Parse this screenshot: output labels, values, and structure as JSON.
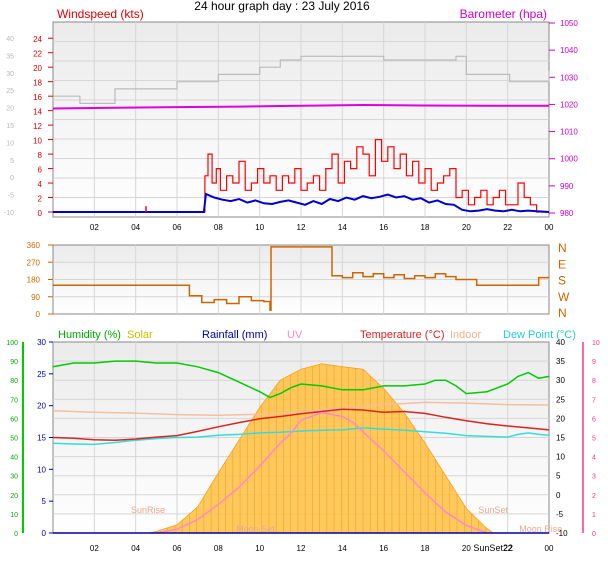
{
  "page": {
    "title": "24 hour graph day : 23 July 2016"
  },
  "colors": {
    "wind_gust": "#ff0000",
    "wind_avg": "#0000cc",
    "barometer": "#dd00dd",
    "baro_hidden": "#bbbbbb",
    "direction": "#cc6600",
    "humidity": "#00cc00",
    "solar": "#ffc040",
    "rain": "#0000aa",
    "uv": "#ff88cc",
    "temperature": "#dd2222",
    "indoor": "#f0c0a0",
    "dewpoint": "#33dddd"
  },
  "chart_data": [
    {
      "type": "line",
      "panel": "wind",
      "left_axis_label": "Windspeed (kts)",
      "right_axis_label": "Barometer (hpa)",
      "x_ticks": [
        "02",
        "04",
        "06",
        "08",
        "10",
        "12",
        "14",
        "16",
        "18",
        "20",
        "22",
        "00"
      ],
      "left_ticks": [
        "0",
        "2",
        "4",
        "6",
        "8",
        "10",
        "12",
        "14",
        "16",
        "18",
        "20",
        "22",
        "24"
      ],
      "left_ylim": [
        0,
        25
      ],
      "faint_ticks": [
        "-10",
        "-5",
        "0",
        "5",
        "10",
        "15",
        "20",
        "25",
        "30",
        "35",
        "40"
      ],
      "faint_ylim": [
        -10,
        40
      ],
      "right_ticks": [
        "980",
        "990",
        "1000",
        "1010",
        "1020",
        "1030",
        "1040",
        "1050"
      ],
      "right_ylim": [
        980,
        1050
      ],
      "x_hours_range": [
        0,
        24
      ],
      "series": [
        {
          "key": "gust",
          "hours": [
            0,
            7.3,
            7.35,
            7.5,
            7.7,
            7.9,
            8.1,
            8.4,
            8.7,
            9.0,
            9.3,
            9.6,
            9.9,
            10.2,
            10.5,
            10.8,
            11.1,
            11.4,
            11.7,
            12.0,
            12.3,
            12.6,
            12.9,
            13.2,
            13.5,
            13.8,
            14.1,
            14.4,
            14.7,
            15.0,
            15.3,
            15.6,
            15.9,
            16.2,
            16.5,
            16.8,
            17.1,
            17.4,
            17.7,
            18.0,
            18.3,
            18.6,
            18.9,
            19.2,
            19.5,
            19.8,
            20.1,
            20.4,
            20.7,
            21.0,
            21.3,
            21.6,
            21.9,
            22.2,
            22.5,
            22.8,
            23.1,
            23.4,
            24
          ],
          "values": [
            0,
            0,
            5,
            8,
            4,
            6,
            3,
            5,
            4,
            7,
            3,
            4,
            6,
            4,
            5,
            3,
            5,
            4,
            6,
            3,
            4,
            5,
            3,
            6,
            8,
            4,
            7,
            6,
            9,
            8,
            5,
            10,
            7,
            9,
            6,
            8,
            5,
            7,
            4,
            6,
            3,
            4,
            5,
            6,
            2,
            3,
            1,
            2,
            3,
            1,
            2,
            3,
            1,
            1,
            4,
            2,
            1,
            0,
            0
          ]
        },
        {
          "key": "avg",
          "hours": [
            0,
            7.3,
            7.4,
            7.8,
            8.2,
            8.6,
            9.0,
            9.4,
            9.8,
            10.2,
            10.6,
            11.0,
            11.4,
            11.8,
            12.2,
            12.6,
            13.0,
            13.4,
            13.8,
            14.2,
            14.6,
            15.0,
            15.4,
            15.8,
            16.2,
            16.6,
            17.0,
            17.4,
            17.8,
            18.2,
            18.6,
            19.0,
            19.4,
            19.8,
            20.2,
            20.6,
            21.0,
            21.4,
            21.8,
            22.2,
            22.6,
            23.0,
            23.4,
            24
          ],
          "values": [
            0,
            0,
            2.5,
            2,
            1.7,
            1.5,
            1.8,
            1.3,
            1.6,
            1.2,
            1.1,
            1.4,
            1.6,
            1.3,
            1.0,
            1.5,
            1.1,
            1.8,
            1.5,
            2.0,
            1.7,
            2.2,
            1.9,
            2.1,
            2.4,
            2.0,
            2.2,
            1.7,
            1.9,
            1.3,
            1.6,
            1.1,
            1.0,
            0.3,
            0.1,
            0.2,
            0.4,
            0.2,
            0.1,
            0.3,
            0.1,
            0.2,
            0.1,
            0
          ]
        },
        {
          "key": "baro",
          "hours": [
            0,
            3,
            6,
            9,
            12,
            15,
            18,
            21,
            24
          ],
          "values": [
            1018.5,
            1018.8,
            1019,
            1019.2,
            1019.5,
            1019.8,
            1019.6,
            1019.5,
            1019.5
          ]
        },
        {
          "key": "hidden",
          "hours": [
            0,
            1.2,
            1.3,
            3,
            6,
            8,
            10,
            11,
            12,
            16,
            19.5,
            20,
            22,
            22.1,
            24
          ],
          "values": [
            16,
            16,
            15,
            17,
            18,
            19,
            20,
            21,
            21.5,
            21,
            21.5,
            19,
            19,
            18,
            19.5
          ]
        }
      ],
      "spikes": [
        {
          "hour": 4.5,
          "value": 0.8
        }
      ]
    },
    {
      "type": "line",
      "panel": "direction",
      "left_ticks": [
        "0",
        "90",
        "180",
        "270",
        "360"
      ],
      "ylim": [
        0,
        360
      ],
      "right_ticks": [
        "N",
        "W",
        "S",
        "E",
        "N"
      ],
      "hours": [
        0,
        5.5,
        6.6,
        7.2,
        7.8,
        8.4,
        9.0,
        9.6,
        10.2,
        10.5,
        10.55,
        13.4,
        13.5,
        14.0,
        14.5,
        15.0,
        15.5,
        16.0,
        16.5,
        17.0,
        17.5,
        18.0,
        18.5,
        19.0,
        19.5,
        20.0,
        20.5,
        21.0,
        21.5,
        22.0,
        22.5,
        23.0,
        23.5,
        24
      ],
      "values": [
        150,
        150,
        95,
        60,
        75,
        55,
        90,
        70,
        65,
        20,
        350,
        350,
        200,
        190,
        215,
        195,
        210,
        190,
        205,
        185,
        200,
        190,
        210,
        195,
        180,
        180,
        150,
        150,
        150,
        150,
        150,
        150,
        190,
        190
      ]
    },
    {
      "type": "line",
      "panel": "weather",
      "legend": [
        {
          "key": "humidity",
          "label": "Humidity (%)"
        },
        {
          "key": "solar",
          "label": "Solar"
        },
        {
          "key": "rain",
          "label": "Rainfall (mm)"
        },
        {
          "key": "uv",
          "label": "UV"
        },
        {
          "key": "temp",
          "label": "Temperature (°C)"
        },
        {
          "key": "indoor",
          "label": "Indoor"
        },
        {
          "key": "dewpoint",
          "label": "Dew Point (°C)"
        }
      ],
      "left_ticks_green": [
        "0",
        "10",
        "20",
        "30",
        "40",
        "50",
        "60",
        "70",
        "80",
        "90",
        "100"
      ],
      "left_ticks_blue": [
        "0",
        "5",
        "10",
        "15",
        "20",
        "25",
        "30"
      ],
      "right_ticks_black": [
        "-10",
        "-5",
        "0",
        "5",
        "10",
        "15",
        "20",
        "25",
        "30",
        "35",
        "40"
      ],
      "right_ticks_pink": [
        "0",
        "1",
        "2",
        "3",
        "4",
        "5",
        "6",
        "7",
        "8",
        "9",
        "10"
      ],
      "x_ticks": [
        "02",
        "04",
        "06",
        "08",
        "10",
        "12",
        "14",
        "16",
        "18",
        "20",
        "22",
        "00"
      ],
      "annotations": [
        {
          "label": "SunRise",
          "hour": 4.6
        },
        {
          "label": "SunSet",
          "hour": 21.3
        },
        {
          "label": "SunSet22",
          "hour": 21.3
        },
        {
          "label": "Moon Set",
          "hour": 9.8
        },
        {
          "label": "Moon Rise",
          "hour": 23.6
        }
      ],
      "humidity": {
        "hours": [
          0,
          1,
          2,
          3,
          4,
          5,
          6,
          7,
          8,
          9,
          10,
          10.5,
          11,
          11.5,
          12,
          13,
          14,
          15,
          16,
          17,
          18,
          18.5,
          19,
          19.5,
          20,
          21,
          22,
          22.5,
          23,
          23.5,
          24
        ],
        "values": [
          87,
          89,
          89,
          90,
          90,
          89,
          89,
          87,
          84,
          79,
          74,
          71,
          73,
          76,
          78,
          77,
          75,
          75,
          77,
          77,
          78,
          80,
          80,
          77,
          73,
          74,
          78,
          82,
          84,
          81,
          82
        ]
      },
      "solar_kwm2": {
        "hours": [
          4.6,
          5,
          6,
          7,
          8,
          9,
          10,
          11,
          12,
          13,
          14,
          15,
          16,
          17,
          18,
          19,
          20,
          21,
          21.3
        ],
        "values": [
          0,
          30,
          150,
          480,
          1100,
          1700,
          2300,
          2800,
          3000,
          3100,
          3050,
          3000,
          2650,
          2200,
          1650,
          1050,
          450,
          80,
          0
        ],
        "ylim": [
          0,
          3500
        ]
      },
      "uv_index": {
        "hours": [
          5,
          6,
          7,
          8,
          9,
          10,
          11,
          11.5,
          12,
          13,
          14,
          14.5,
          15,
          16,
          17,
          18,
          19,
          20,
          21
        ],
        "values": [
          0,
          0.2,
          0.7,
          1.5,
          2.4,
          3.5,
          4.7,
          5.2,
          5.9,
          6.3,
          6.1,
          5.8,
          5.3,
          4.3,
          3.2,
          2.1,
          1.1,
          0.4,
          0
        ]
      },
      "temperature": {
        "hours": [
          0,
          1,
          2,
          3,
          4,
          5,
          6,
          7,
          8,
          9,
          10,
          11,
          12,
          13,
          14,
          15,
          16,
          17,
          18,
          19,
          20,
          21,
          22,
          23,
          24
        ],
        "values": [
          15,
          14.8,
          14.4,
          14.3,
          14.6,
          15.1,
          15.5,
          16.6,
          17.8,
          18.9,
          19.9,
          20.5,
          21.2,
          21.8,
          22.4,
          22.2,
          21.6,
          21.8,
          21.3,
          20.3,
          19.4,
          18.6,
          18.0,
          17.5,
          17.0
        ]
      },
      "dewpoint": {
        "hours": [
          0,
          1,
          2,
          3,
          4,
          5,
          6,
          7,
          8,
          9,
          10,
          11,
          12,
          13,
          14,
          15,
          16,
          17,
          18,
          19,
          20,
          21,
          22,
          22.5,
          23,
          23.5,
          24
        ],
        "values": [
          13.5,
          13.3,
          13.2,
          13.7,
          14.3,
          14.7,
          15.0,
          15.1,
          15.6,
          15.8,
          16.2,
          16.4,
          16.7,
          16.9,
          17.0,
          17.5,
          17.2,
          16.9,
          16.5,
          16.1,
          15.5,
          15.3,
          15.1,
          15.8,
          16.2,
          15.8,
          15.6
        ]
      },
      "indoor": {
        "hours": [
          0,
          2,
          4,
          6,
          8,
          10,
          12,
          14,
          16,
          18,
          20,
          22,
          24
        ],
        "values": [
          22,
          21.6,
          21.4,
          21.0,
          20.8,
          21.1,
          21.7,
          22.7,
          23.6,
          24.2,
          24.0,
          23.6,
          23.5
        ]
      },
      "rain_mm": {
        "hours": [
          0,
          24
        ],
        "values": [
          0,
          0
        ]
      },
      "temp_ylim": [
        -10,
        40
      ],
      "humidity_ylim": [
        0,
        100
      ],
      "uv_ylim": [
        0,
        10
      ],
      "rain_ylim": [
        0,
        30
      ]
    }
  ]
}
